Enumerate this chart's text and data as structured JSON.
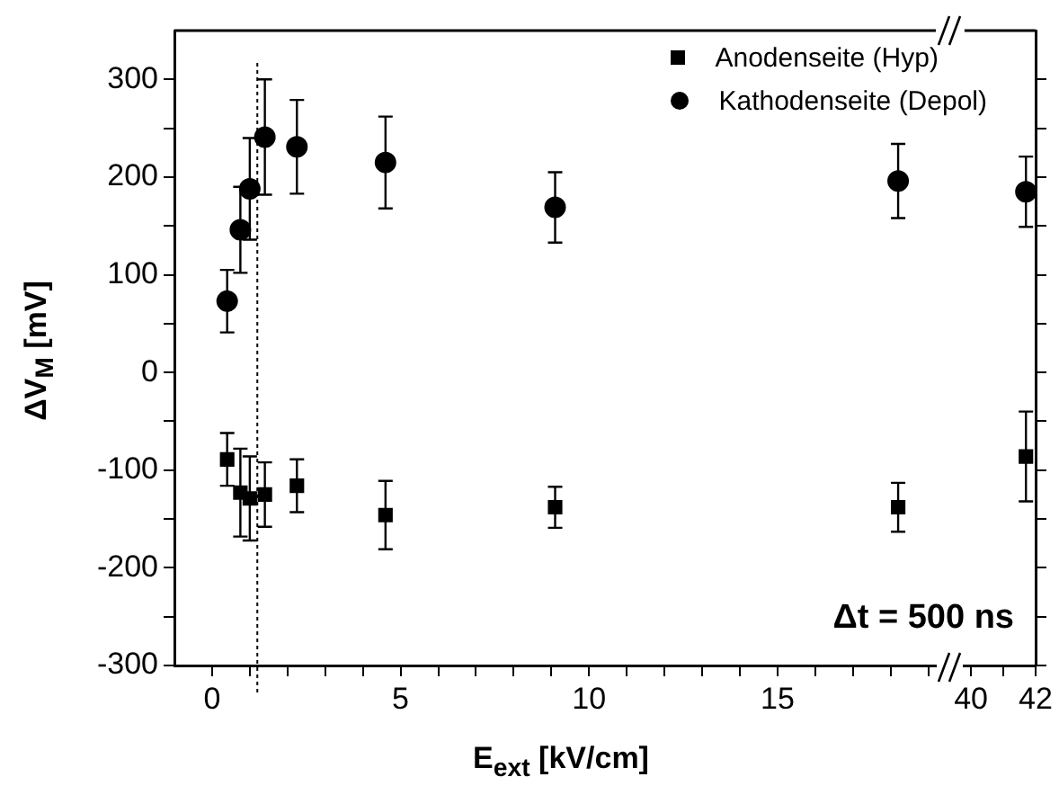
{
  "chart_data": [
    {
      "type": "scatter",
      "xlabel": "E$_{ext}$ [kV/cm]",
      "ylabel": "ΔV$_{M}$ [mV]",
      "xlim": [
        -1,
        19.2
      ],
      "xticks": [
        0,
        {
          "value": 1,
          "label": null
        },
        {
          "value": 2,
          "label": null
        },
        {
          "value": 3,
          "label": null
        },
        {
          "value": 4,
          "label": null
        },
        5,
        {
          "value": 6,
          "label": null
        },
        {
          "value": 7,
          "label": null
        },
        {
          "value": 8,
          "label": null
        },
        {
          "value": 9,
          "label": null
        },
        10,
        {
          "value": 11,
          "label": null
        },
        {
          "value": 12,
          "label": null
        },
        {
          "value": 13,
          "label": null
        },
        {
          "value": 14,
          "label": null
        },
        15,
        {
          "value": 16,
          "label": null
        },
        {
          "value": 17,
          "label": null
        },
        {
          "value": 18,
          "label": null
        },
        {
          "value": 19,
          "label": null
        }
      ],
      "ylim": [
        -300,
        350
      ],
      "yticks": [
        -300,
        {
          "value": -250,
          "label": null
        },
        -200,
        {
          "value": -150,
          "label": null
        },
        -100,
        {
          "value": -50,
          "label": null
        },
        0,
        {
          "value": 50,
          "label": null
        },
        100,
        {
          "value": 150,
          "label": null
        },
        200,
        {
          "value": 250,
          "label": null
        },
        300
      ],
      "grid": false,
      "legend": "top right",
      "ref_lines": [
        {
          "axis": "x",
          "value": 1.2,
          "line_style": "dotted",
          "color": "#000000"
        }
      ],
      "annotations": [
        "Δt = 500 ns"
      ],
      "series": [
        {
          "name": "Anodenseite (Hyp)",
          "color": "#000000",
          "marker": "square",
          "x": [
            0.4,
            0.75,
            1.0,
            1.4,
            2.25,
            4.6,
            9.1,
            18.2
          ],
          "values": [
            -89,
            -123,
            -129,
            -125,
            -116,
            -146,
            -138,
            -138
          ],
          "errors": [
            27,
            45,
            43,
            33,
            27,
            35,
            21,
            25
          ]
        },
        {
          "name": "Kathodenseite (Depol)",
          "color": "#000000",
          "marker": "circle",
          "x": [
            0.4,
            0.75,
            1.0,
            1.4,
            2.25,
            4.6,
            9.1,
            18.2
          ],
          "values": [
            73,
            146,
            188,
            241,
            231,
            215,
            169,
            196
          ],
          "errors": [
            32,
            44,
            52,
            59,
            48,
            47,
            36,
            38
          ]
        }
      ]
    },
    {
      "type": "scatter",
      "xlim": [
        39.8,
        42
      ],
      "xticks": [
        40,
        {
          "value": 41,
          "label": null
        },
        42
      ],
      "ylim": [
        -300,
        350
      ],
      "yticks": [
        -300,
        {
          "value": -250,
          "label": null
        },
        -200,
        {
          "value": -150,
          "label": null
        },
        -100,
        {
          "value": -50,
          "label": null
        },
        0,
        {
          "value": 50,
          "label": null
        },
        100,
        {
          "value": 150,
          "label": null
        },
        200,
        {
          "value": 250,
          "label": null
        },
        300
      ],
      "tick_labels": "x",
      "grid": false,
      "series": [
        {
          "color": "#000000",
          "marker": "square",
          "x": [
            41.7
          ],
          "values": [
            -86
          ],
          "errors": [
            46
          ]
        },
        {
          "color": "#000000",
          "marker": "circle",
          "x": [
            41.7
          ],
          "values": [
            185
          ],
          "errors": [
            36
          ]
        }
      ]
    }
  ]
}
